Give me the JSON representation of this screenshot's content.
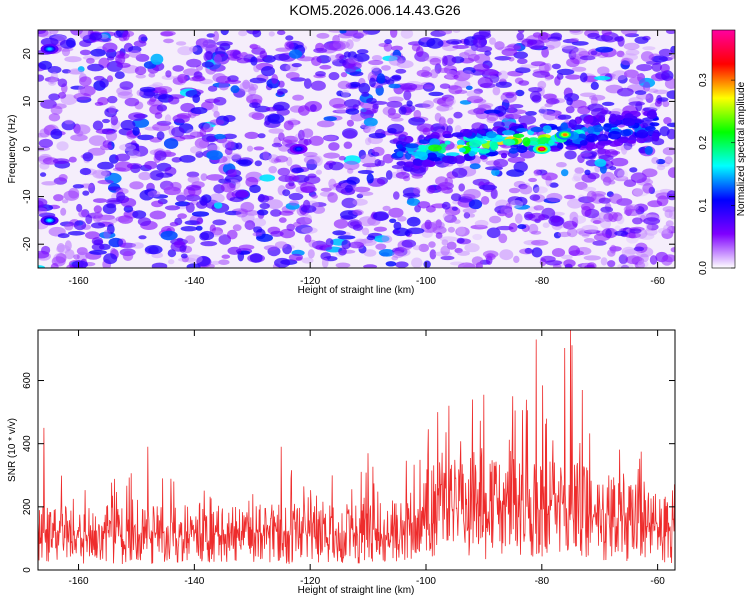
{
  "figure": {
    "title": "KOM5.2026.006.14.43.G26"
  },
  "chart_data": [
    {
      "type": "heatmap",
      "xlabel": "Height of straight line (km)",
      "ylabel": "Frequency (Hz)",
      "xlim": [
        -167,
        -57
      ],
      "ylim": [
        -25,
        25
      ],
      "x_ticks": [
        -160,
        -140,
        -120,
        -100,
        -80,
        -60
      ],
      "y_ticks": [
        -20,
        -10,
        0,
        10,
        20
      ],
      "grid": false,
      "colorbar": {
        "label": "Normalized spectral amplitude",
        "range": [
          0,
          0.38
        ],
        "ticks": [
          0.0,
          0.1,
          0.2,
          0.3
        ],
        "colormap": [
          "#ffffff",
          "#7f00ff",
          "#0000ff",
          "#00ffff",
          "#00ff00",
          "#ffff00",
          "#ff0000",
          "#ff00a0"
        ]
      },
      "features": {
        "background_amplitude": [
          0.02,
          0.1
        ],
        "ridge": {
          "x_range": [
            -105,
            -60
          ],
          "freq_center_hz": [
            -1,
            5
          ],
          "peak_amplitude": 0.38,
          "peak_x": -80,
          "peak_freq_hz": 0
        },
        "hotspots": [
          {
            "x": -165,
            "freq_hz": 21,
            "amplitude": 0.15
          },
          {
            "x": -165,
            "freq_hz": -15,
            "amplitude": 0.16
          },
          {
            "x": -122,
            "freq_hz": 0,
            "amplitude": 0.12
          },
          {
            "x": -80,
            "freq_hz": 0,
            "amplitude": 0.38
          },
          {
            "x": -76,
            "freq_hz": 3,
            "amplitude": 0.3
          }
        ]
      }
    },
    {
      "type": "line",
      "xlabel": "Height of straight line (km)",
      "ylabel": "SNR (10 * v/v)",
      "xlim": [
        -167,
        -57
      ],
      "ylim": [
        0,
        760
      ],
      "x_ticks": [
        -160,
        -140,
        -120,
        -100,
        -80,
        -60
      ],
      "y_ticks": [
        0,
        200,
        400,
        600
      ],
      "grid": false,
      "series": [
        {
          "color": "#ee2c2c",
          "profile": [
            {
              "x": -167,
              "base": 120,
              "peak": 300
            },
            {
              "x": -105,
              "base": 125,
              "peak": 330
            },
            {
              "x": -100,
              "base": 200,
              "peak": 470
            },
            {
              "x": -88,
              "base": 215,
              "peak": 500
            },
            {
              "x": -82,
              "base": 210,
              "peak": 730
            },
            {
              "x": -75,
              "base": 205,
              "peak": 760
            },
            {
              "x": -65,
              "base": 170,
              "peak": 420
            },
            {
              "x": -57,
              "base": 130,
              "peak": 330
            }
          ],
          "spikes": [
            {
              "x": -166,
              "y": 450
            },
            {
              "x": -148,
              "y": 390
            },
            {
              "x": -125,
              "y": 390
            },
            {
              "x": -110,
              "y": 370
            },
            {
              "x": -98,
              "y": 500
            },
            {
              "x": -96,
              "y": 520
            },
            {
              "x": -92,
              "y": 540
            },
            {
              "x": -90,
              "y": 555
            },
            {
              "x": -85,
              "y": 550
            },
            {
              "x": -81,
              "y": 730
            },
            {
              "x": -75,
              "y": 760
            },
            {
              "x": -73,
              "y": 570
            }
          ]
        }
      ]
    }
  ]
}
